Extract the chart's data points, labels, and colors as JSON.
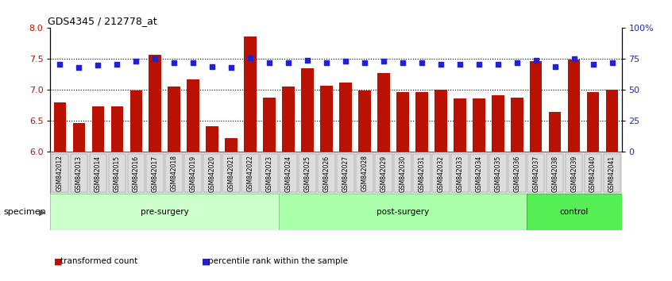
{
  "title": "GDS4345 / 212778_at",
  "samples": [
    "GSM842012",
    "GSM842013",
    "GSM842014",
    "GSM842015",
    "GSM842016",
    "GSM842017",
    "GSM842018",
    "GSM842019",
    "GSM842020",
    "GSM842021",
    "GSM842022",
    "GSM842023",
    "GSM842024",
    "GSM842025",
    "GSM842026",
    "GSM842027",
    "GSM842028",
    "GSM842029",
    "GSM842030",
    "GSM842031",
    "GSM842032",
    "GSM842033",
    "GSM842034",
    "GSM842035",
    "GSM842036",
    "GSM842037",
    "GSM842038",
    "GSM842039",
    "GSM842040",
    "GSM842041"
  ],
  "bar_values": [
    6.8,
    6.47,
    6.73,
    6.74,
    6.99,
    7.57,
    7.06,
    7.17,
    6.41,
    6.22,
    7.87,
    6.88,
    7.05,
    7.35,
    7.07,
    7.12,
    6.99,
    7.27,
    6.97,
    6.96,
    7.01,
    6.86,
    6.86,
    6.91,
    6.88,
    7.46,
    6.65,
    7.49,
    6.97,
    7.01
  ],
  "percentile_values": [
    71,
    68,
    70,
    71,
    73,
    75,
    72,
    72,
    69,
    68,
    76,
    72,
    72,
    74,
    72,
    73,
    72,
    73,
    72,
    72,
    71,
    71,
    71,
    71,
    72,
    74,
    69,
    75,
    71,
    72
  ],
  "groups": [
    {
      "label": "pre-surgery",
      "start": 0,
      "end": 12,
      "facecolor": "#ccffcc",
      "edgecolor": "#88cc88"
    },
    {
      "label": "post-surgery",
      "start": 12,
      "end": 25,
      "facecolor": "#aaffaa",
      "edgecolor": "#88cc88"
    },
    {
      "label": "control",
      "start": 25,
      "end": 30,
      "facecolor": "#55ee55",
      "edgecolor": "#44aa44"
    }
  ],
  "bar_color": "#bb1100",
  "dot_color": "#2222cc",
  "ylim_left": [
    6.0,
    8.0
  ],
  "ylim_right": [
    0,
    100
  ],
  "yticks_left": [
    6.0,
    6.5,
    7.0,
    7.5,
    8.0
  ],
  "yticks_right": [
    0,
    25,
    50,
    75,
    100
  ],
  "ytick_labels_right": [
    "0",
    "25",
    "50",
    "75",
    "100%"
  ],
  "hlines": [
    6.5,
    7.0,
    7.5
  ],
  "specimen_label": "specimen",
  "legend_items": [
    {
      "label": "transformed count",
      "color": "#bb1100"
    },
    {
      "label": "percentile rank within the sample",
      "color": "#2222cc"
    }
  ]
}
